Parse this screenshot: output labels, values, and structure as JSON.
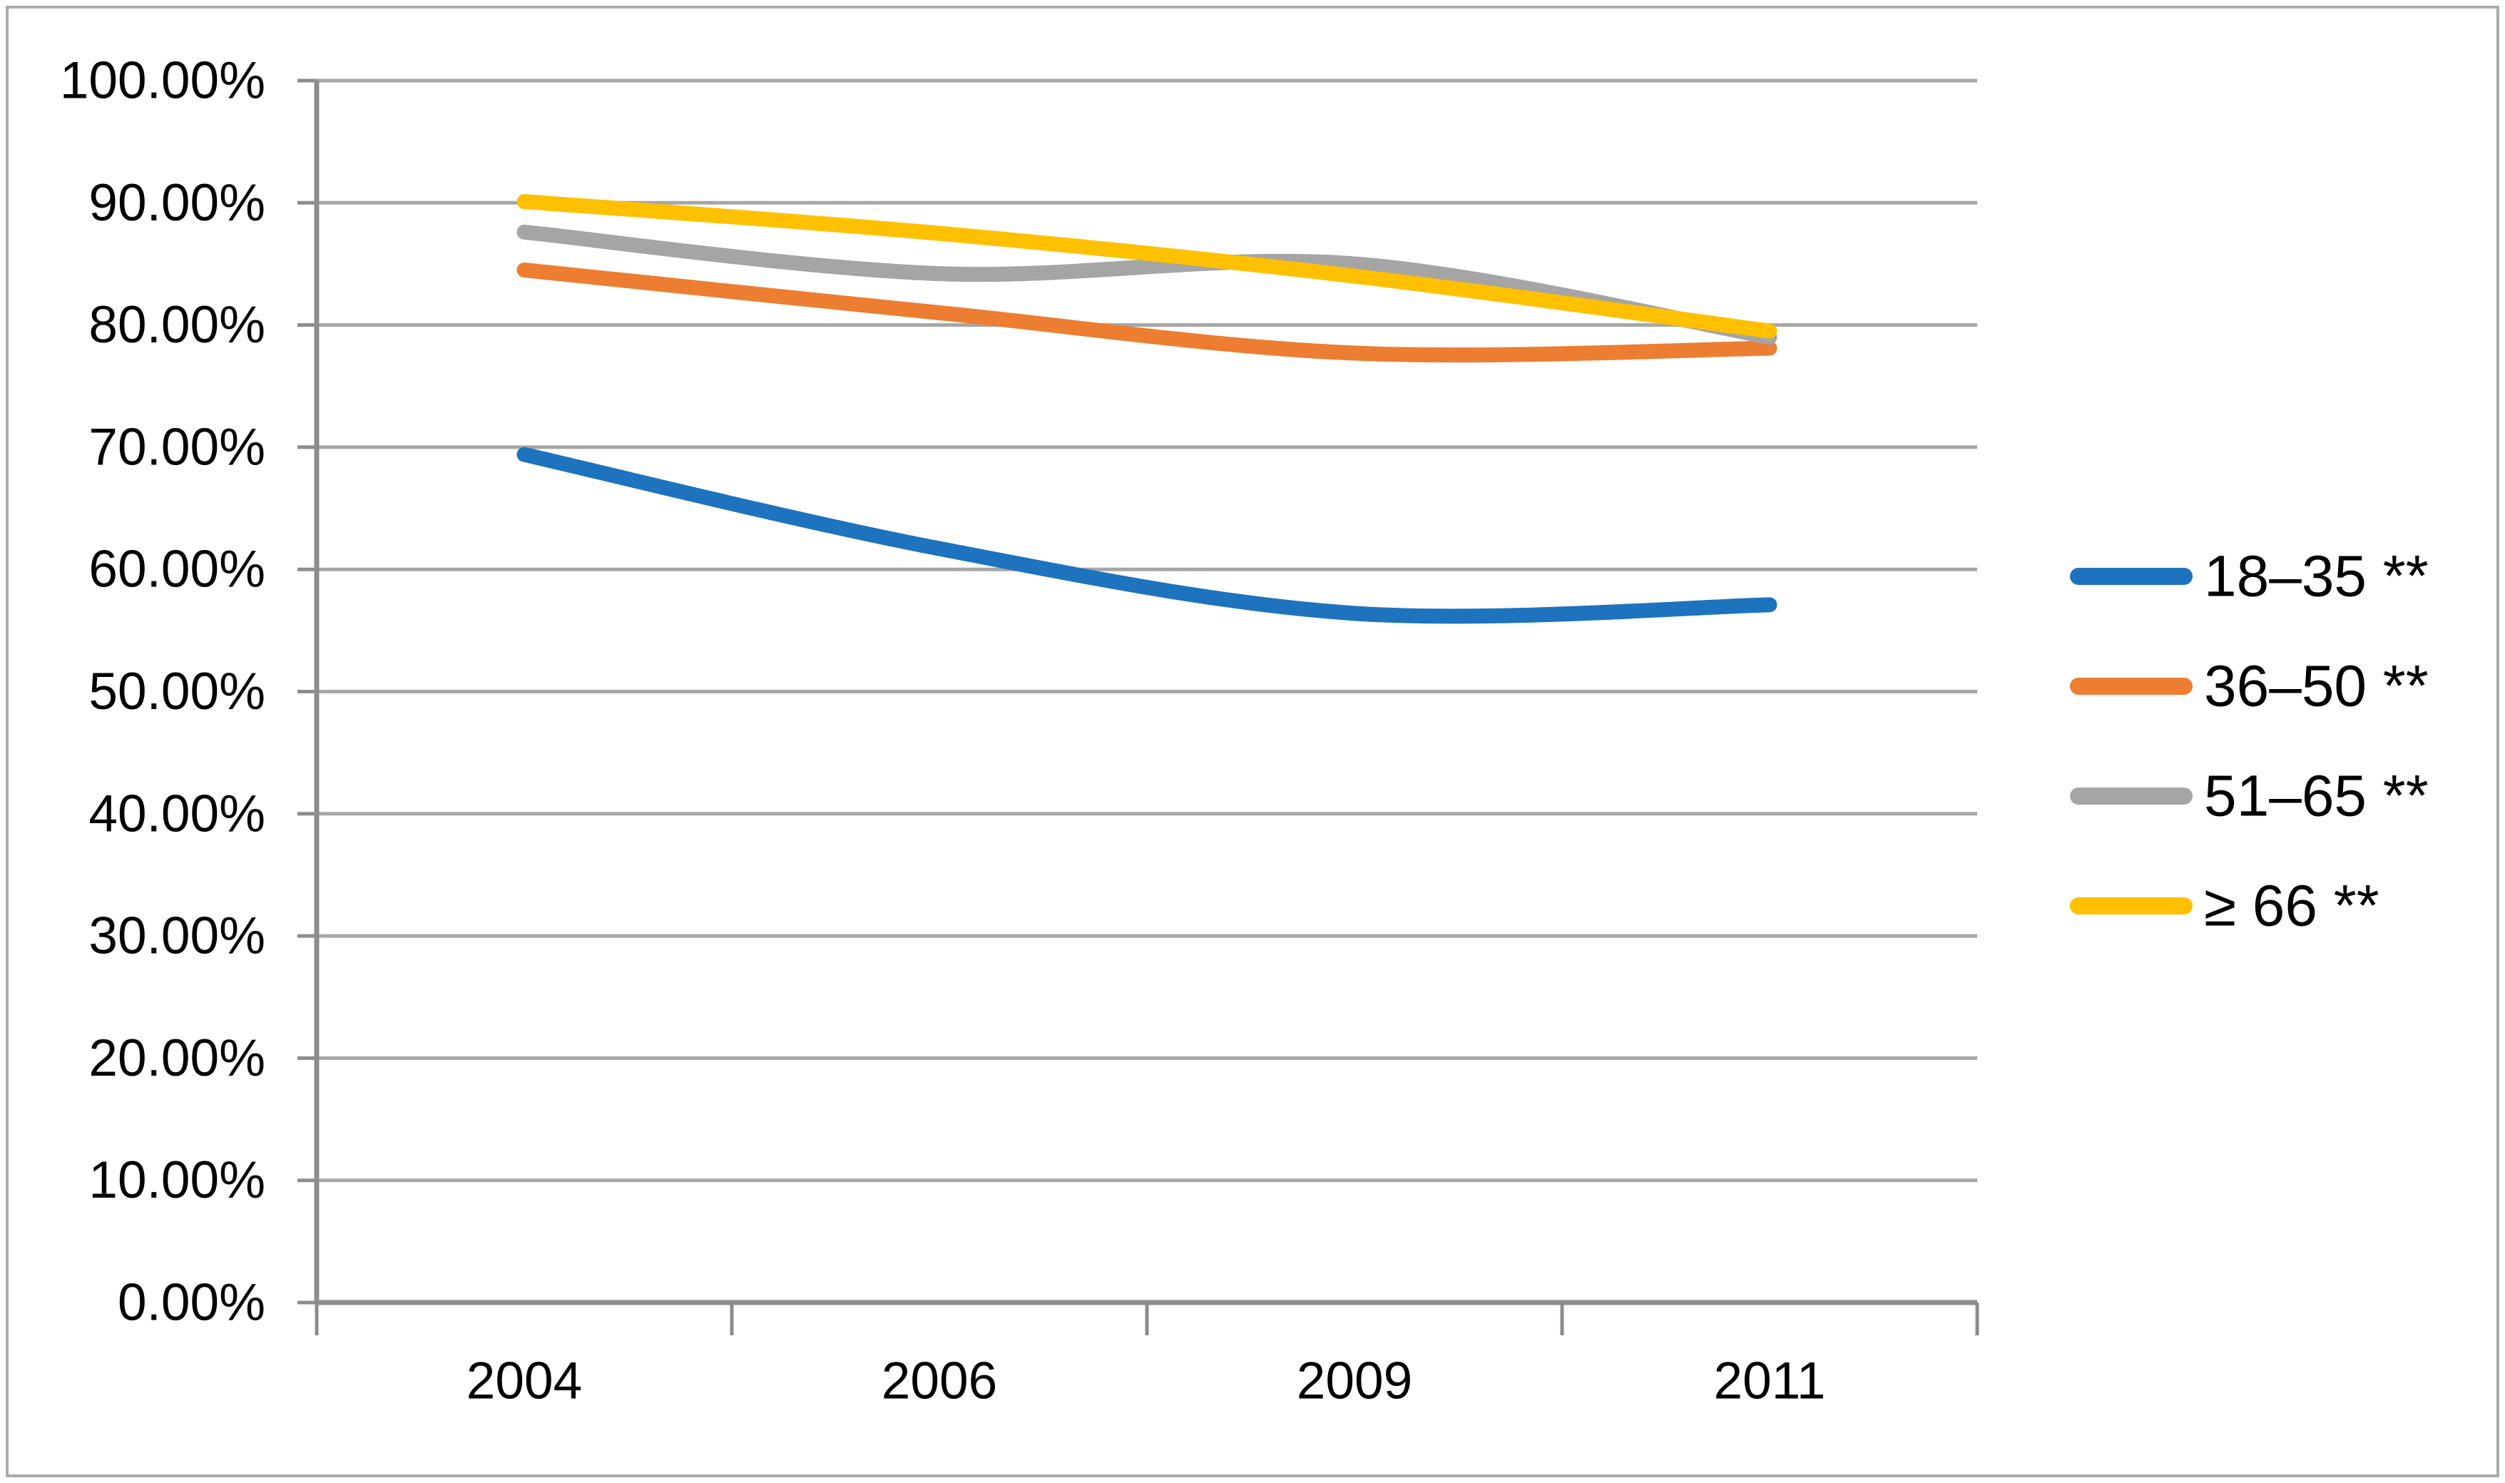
{
  "chart_data": {
    "type": "line",
    "title": "",
    "xlabel": "",
    "ylabel": "",
    "categories": [
      "2004",
      "2006",
      "2009",
      "2011"
    ],
    "series": [
      {
        "name": "18–35 **",
        "color": "#1E73BE",
        "values": [
          69.4,
          61.7,
          56.4,
          57.1
        ]
      },
      {
        "name": "36–50 **",
        "color": "#ED7D31",
        "values": [
          84.5,
          81.0,
          77.7,
          78.1
        ]
      },
      {
        "name": "51–65 **",
        "color": "#A5A5A5",
        "values": [
          87.6,
          84.2,
          85.0,
          79.0
        ]
      },
      {
        "name": "≥ 66 **",
        "color": "#FFC000",
        "values": [
          90.1,
          87.5,
          84.0,
          79.5
        ]
      }
    ],
    "y_axis": {
      "min": 0,
      "max": 100,
      "step": 10,
      "tick_labels": [
        "0.00%",
        "10.00%",
        "20.00%",
        "30.00%",
        "40.00%",
        "50.00%",
        "60.00%",
        "70.00%",
        "80.00%",
        "90.00%",
        "100.00%"
      ]
    },
    "legend": {
      "position": "right"
    },
    "style": {
      "background": "#FFFFFF",
      "gridline_color": "#A6A6A6",
      "axis_color": "#8C8C8C",
      "border_color": "#ABABAB",
      "text_color": "#000000",
      "grid": "horizontal",
      "line_smoothing": true
    }
  }
}
